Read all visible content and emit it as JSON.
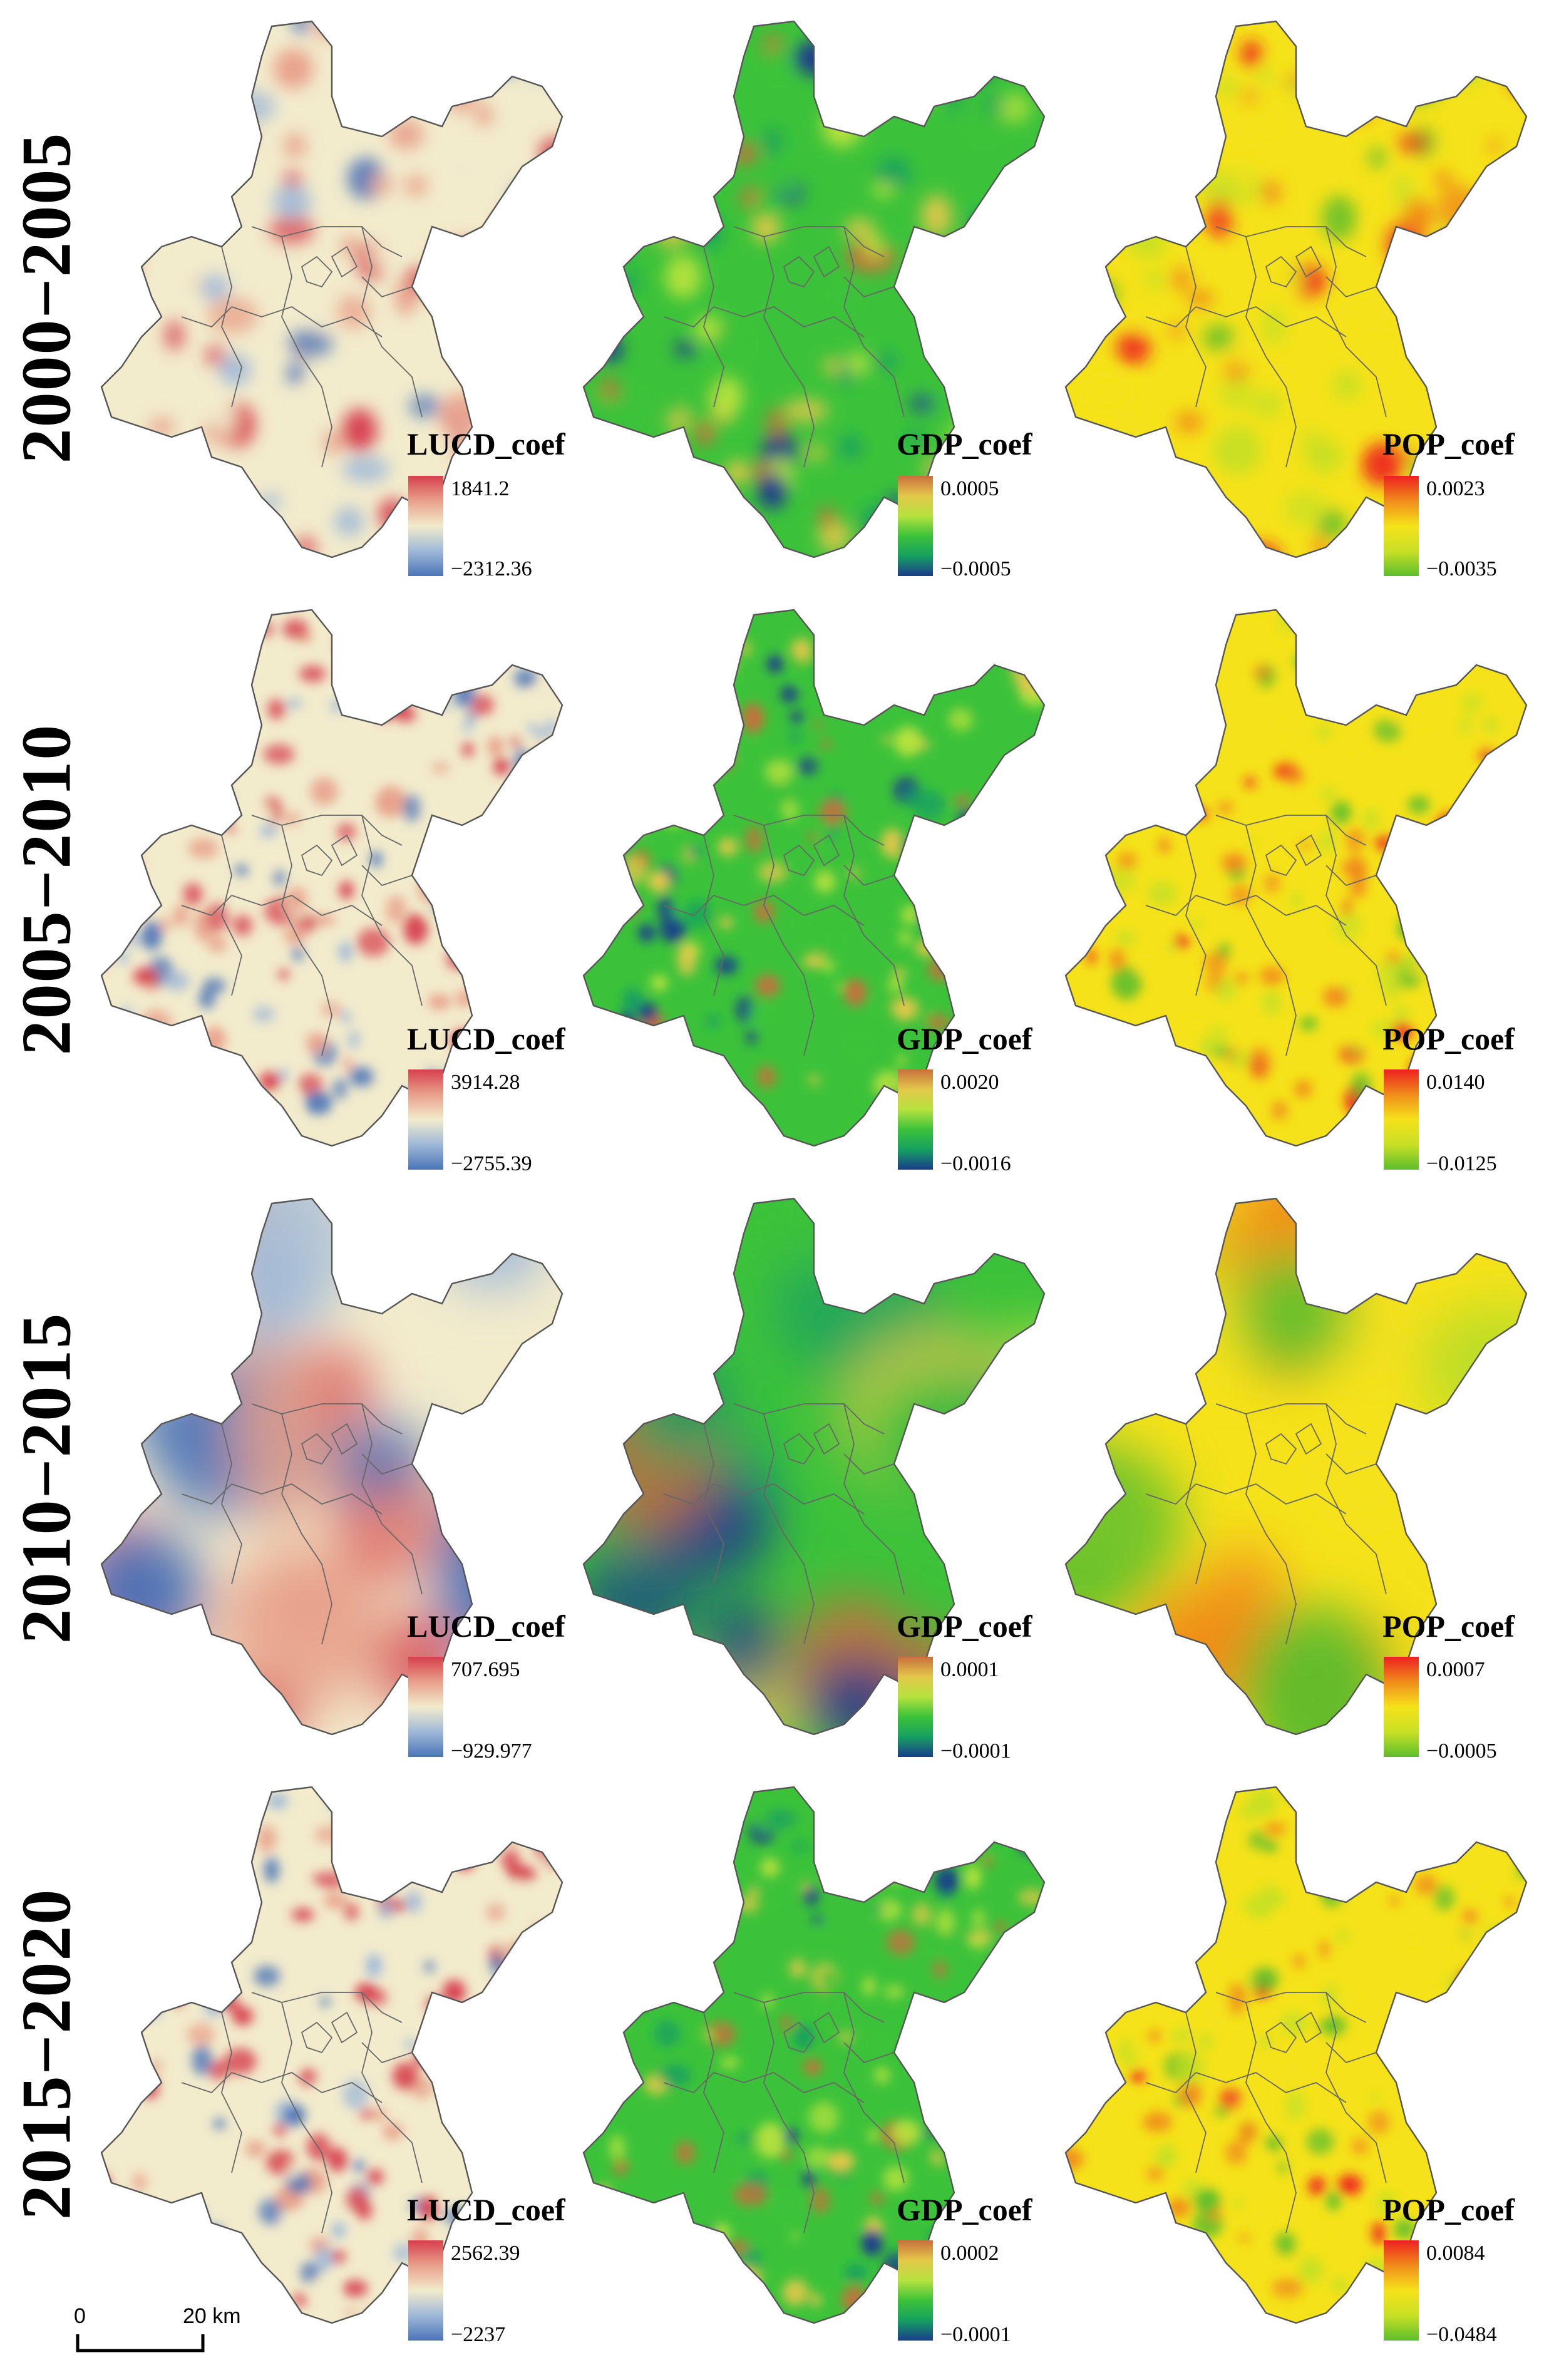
{
  "rows": [
    {
      "period": "2000−2005",
      "panels": [
        {
          "variable": "LUCD",
          "legend_title": "LUCD_coef",
          "max": "1841.2",
          "min": "−2312.36",
          "palette": "rdbu",
          "seed": 11,
          "smooth": 2
        },
        {
          "variable": "GDP",
          "legend_title": "GDP_coef",
          "max": "0.0005",
          "min": "−0.0005",
          "palette": "spectral",
          "seed": 12,
          "smooth": 2
        },
        {
          "variable": "POP",
          "legend_title": "POP_coef",
          "max": "0.0023",
          "min": "−0.0035",
          "palette": "ryg",
          "seed": 13,
          "smooth": 2
        }
      ]
    },
    {
      "period": "2005−2010",
      "panels": [
        {
          "variable": "LUCD",
          "legend_title": "LUCD_coef",
          "max": "3914.28",
          "min": "−2755.39",
          "palette": "rdbu",
          "seed": 21,
          "smooth": 1
        },
        {
          "variable": "GDP",
          "legend_title": "GDP_coef",
          "max": "0.0020",
          "min": "−0.0016",
          "palette": "spectral",
          "seed": 22,
          "smooth": 1
        },
        {
          "variable": "POP",
          "legend_title": "POP_coef",
          "max": "0.0140",
          "min": "−0.0125",
          "palette": "ryg",
          "seed": 23,
          "smooth": 1
        }
      ]
    },
    {
      "period": "2010−2015",
      "panels": [
        {
          "variable": "LUCD",
          "legend_title": "LUCD_coef",
          "max": "707.695",
          "min": "−929.977",
          "palette": "rdbu",
          "seed": 31,
          "smooth": 3
        },
        {
          "variable": "GDP",
          "legend_title": "GDP_coef",
          "max": "0.0001",
          "min": "−0.0001",
          "palette": "spectral",
          "seed": 32,
          "smooth": 3
        },
        {
          "variable": "POP",
          "legend_title": "POP_coef",
          "max": "0.0007",
          "min": "−0.0005",
          "palette": "ryg",
          "seed": 33,
          "smooth": 3
        }
      ]
    },
    {
      "period": "2015−2020",
      "panels": [
        {
          "variable": "LUCD",
          "legend_title": "LUCD_coef",
          "max": "2562.39",
          "min": "−2237",
          "palette": "rdbu",
          "seed": 41,
          "smooth": 1
        },
        {
          "variable": "GDP",
          "legend_title": "GDP_coef",
          "max": "0.0002",
          "min": "−0.0001",
          "palette": "spectral",
          "seed": 42,
          "smooth": 1
        },
        {
          "variable": "POP",
          "legend_title": "POP_coef",
          "max": "0.0084",
          "min": "−0.0484",
          "palette": "ryg",
          "seed": 43,
          "smooth": 1
        }
      ]
    }
  ],
  "palettes": {
    "rdbu": [
      "#d6404e",
      "#e8a08a",
      "#f2ebcc",
      "#9fb8d8",
      "#4a74b8"
    ],
    "spectral": [
      "#c8703c",
      "#e3c84a",
      "#b6e23e",
      "#3cc23a",
      "#16a060",
      "#1a3c8c"
    ],
    "ryg": [
      "#ee2020",
      "#f08c1a",
      "#f5e21a",
      "#c8e024",
      "#5cbe2c"
    ]
  },
  "scale_bar": {
    "start": "0",
    "end": "20 km"
  }
}
